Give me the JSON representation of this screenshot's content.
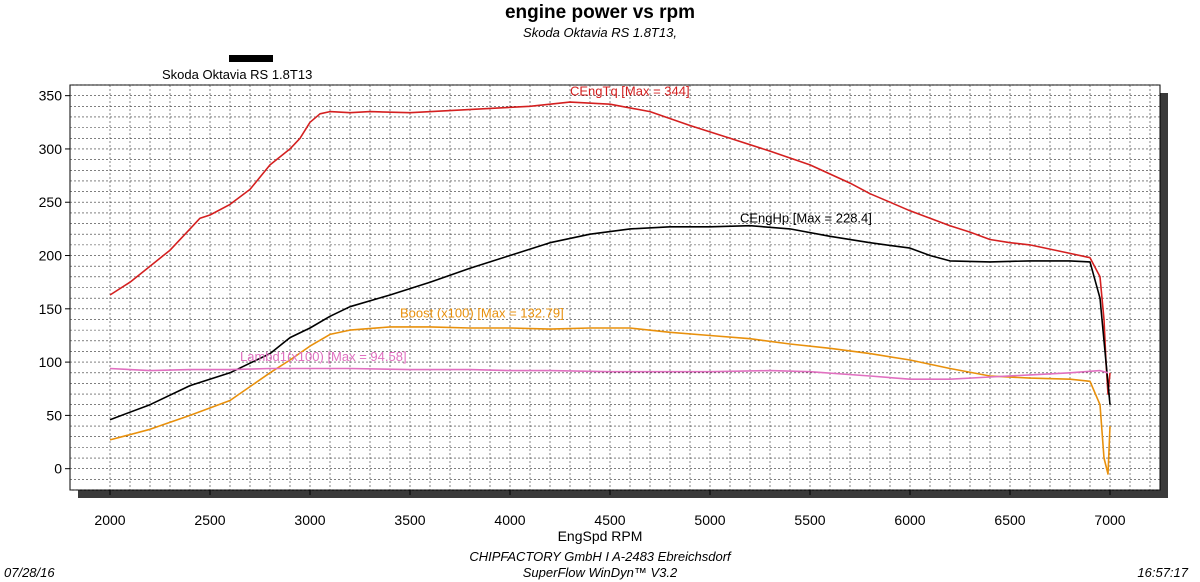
{
  "header": {
    "title": "engine power vs rpm",
    "subtitle": "Skoda Oktavia RS 1.8T13,"
  },
  "legend": {
    "label": "Skoda Oktavia RS 1.8T13",
    "color": "#000000"
  },
  "footer": {
    "company": "CHIPFACTORY GmbH I A-2483 Ebreichsdorf",
    "software": "SuperFlow WinDyn™ V3.2",
    "date": "07/28/16",
    "time": "16:57:17"
  },
  "chart_data": {
    "type": "line",
    "xlabel": "EngSpd RPM",
    "ylabel": "",
    "xlim": [
      1800,
      7250
    ],
    "ylim": [
      -20,
      360
    ],
    "xticks": [
      2000,
      2500,
      3000,
      3500,
      4000,
      4500,
      5000,
      5500,
      6000,
      6500,
      7000
    ],
    "yticks": [
      0,
      50,
      100,
      150,
      200,
      250,
      300,
      350
    ],
    "grid": true,
    "series": [
      {
        "name": "CEngTq",
        "annotation": "CEngTq [Max = 344]",
        "annotation_at": [
          4300,
          350
        ],
        "color": "#d42020",
        "x": [
          2000,
          2100,
          2200,
          2300,
          2400,
          2450,
          2500,
          2600,
          2700,
          2800,
          2900,
          2950,
          3000,
          3050,
          3100,
          3200,
          3300,
          3500,
          3700,
          3900,
          4100,
          4300,
          4500,
          4700,
          4900,
          5100,
          5300,
          5500,
          5700,
          5800,
          5900,
          6000,
          6100,
          6200,
          6300,
          6400,
          6500,
          6600,
          6700,
          6800,
          6900,
          6950,
          6970,
          6980,
          6990,
          7000
        ],
        "y": [
          163,
          175,
          190,
          205,
          225,
          235,
          238,
          248,
          262,
          285,
          300,
          310,
          325,
          333,
          335,
          334,
          335,
          334,
          336,
          338,
          340,
          344,
          342,
          335,
          322,
          310,
          298,
          285,
          268,
          258,
          250,
          242,
          235,
          228,
          222,
          215,
          212,
          210,
          206,
          202,
          198,
          180,
          140,
          100,
          70,
          90
        ]
      },
      {
        "name": "CEngHp",
        "annotation": "CEngHp [Max = 228.4]",
        "annotation_at": [
          5150,
          231
        ],
        "color": "#000000",
        "x": [
          2000,
          2200,
          2400,
          2600,
          2800,
          2900,
          3000,
          3100,
          3200,
          3400,
          3600,
          3800,
          4000,
          4200,
          4400,
          4600,
          4800,
          5000,
          5200,
          5400,
          5600,
          5800,
          6000,
          6100,
          6200,
          6400,
          6600,
          6800,
          6900,
          6950,
          6970,
          6990,
          7000
        ],
        "y": [
          46,
          60,
          78,
          90,
          108,
          123,
          132,
          143,
          152,
          163,
          175,
          188,
          200,
          212,
          220,
          225,
          227,
          227,
          228,
          225,
          218,
          212,
          207,
          200,
          195,
          194,
          195,
          195,
          194,
          160,
          120,
          80,
          60
        ]
      },
      {
        "name": "Boost (x100)",
        "annotation": "Boost (x100) [Max = 132.79]",
        "annotation_at": [
          3450,
          142
        ],
        "color": "#e8900c",
        "x": [
          2000,
          2200,
          2400,
          2600,
          2800,
          2900,
          3000,
          3100,
          3200,
          3400,
          3600,
          3800,
          4000,
          4200,
          4400,
          4600,
          4800,
          5000,
          5200,
          5400,
          5600,
          5800,
          6000,
          6200,
          6400,
          6600,
          6800,
          6900,
          6950,
          6970,
          6990,
          7000
        ],
        "y": [
          27,
          37,
          50,
          64,
          90,
          102,
          115,
          126,
          130,
          133,
          133,
          132,
          132,
          131,
          132,
          132,
          128,
          125,
          122,
          117,
          113,
          108,
          102,
          94,
          87,
          85,
          84,
          82,
          60,
          10,
          -5,
          40
        ]
      },
      {
        "name": "Lambda1 (x100)",
        "annotation": "Lambd1(x100) [Max = 94.58]",
        "annotation_at": [
          2650,
          101
        ],
        "color": "#e070c0",
        "x": [
          2000,
          2200,
          2400,
          2600,
          2800,
          3000,
          3200,
          3500,
          3800,
          4000,
          4200,
          4500,
          4800,
          5000,
          5300,
          5500,
          5800,
          6000,
          6200,
          6400,
          6600,
          6800,
          6950,
          6990
        ],
        "y": [
          94,
          92,
          93,
          93,
          94,
          94,
          94,
          93,
          93,
          92,
          92,
          91,
          91,
          91,
          92,
          91,
          87,
          84,
          84,
          86,
          88,
          90,
          92,
          90
        ]
      }
    ]
  }
}
